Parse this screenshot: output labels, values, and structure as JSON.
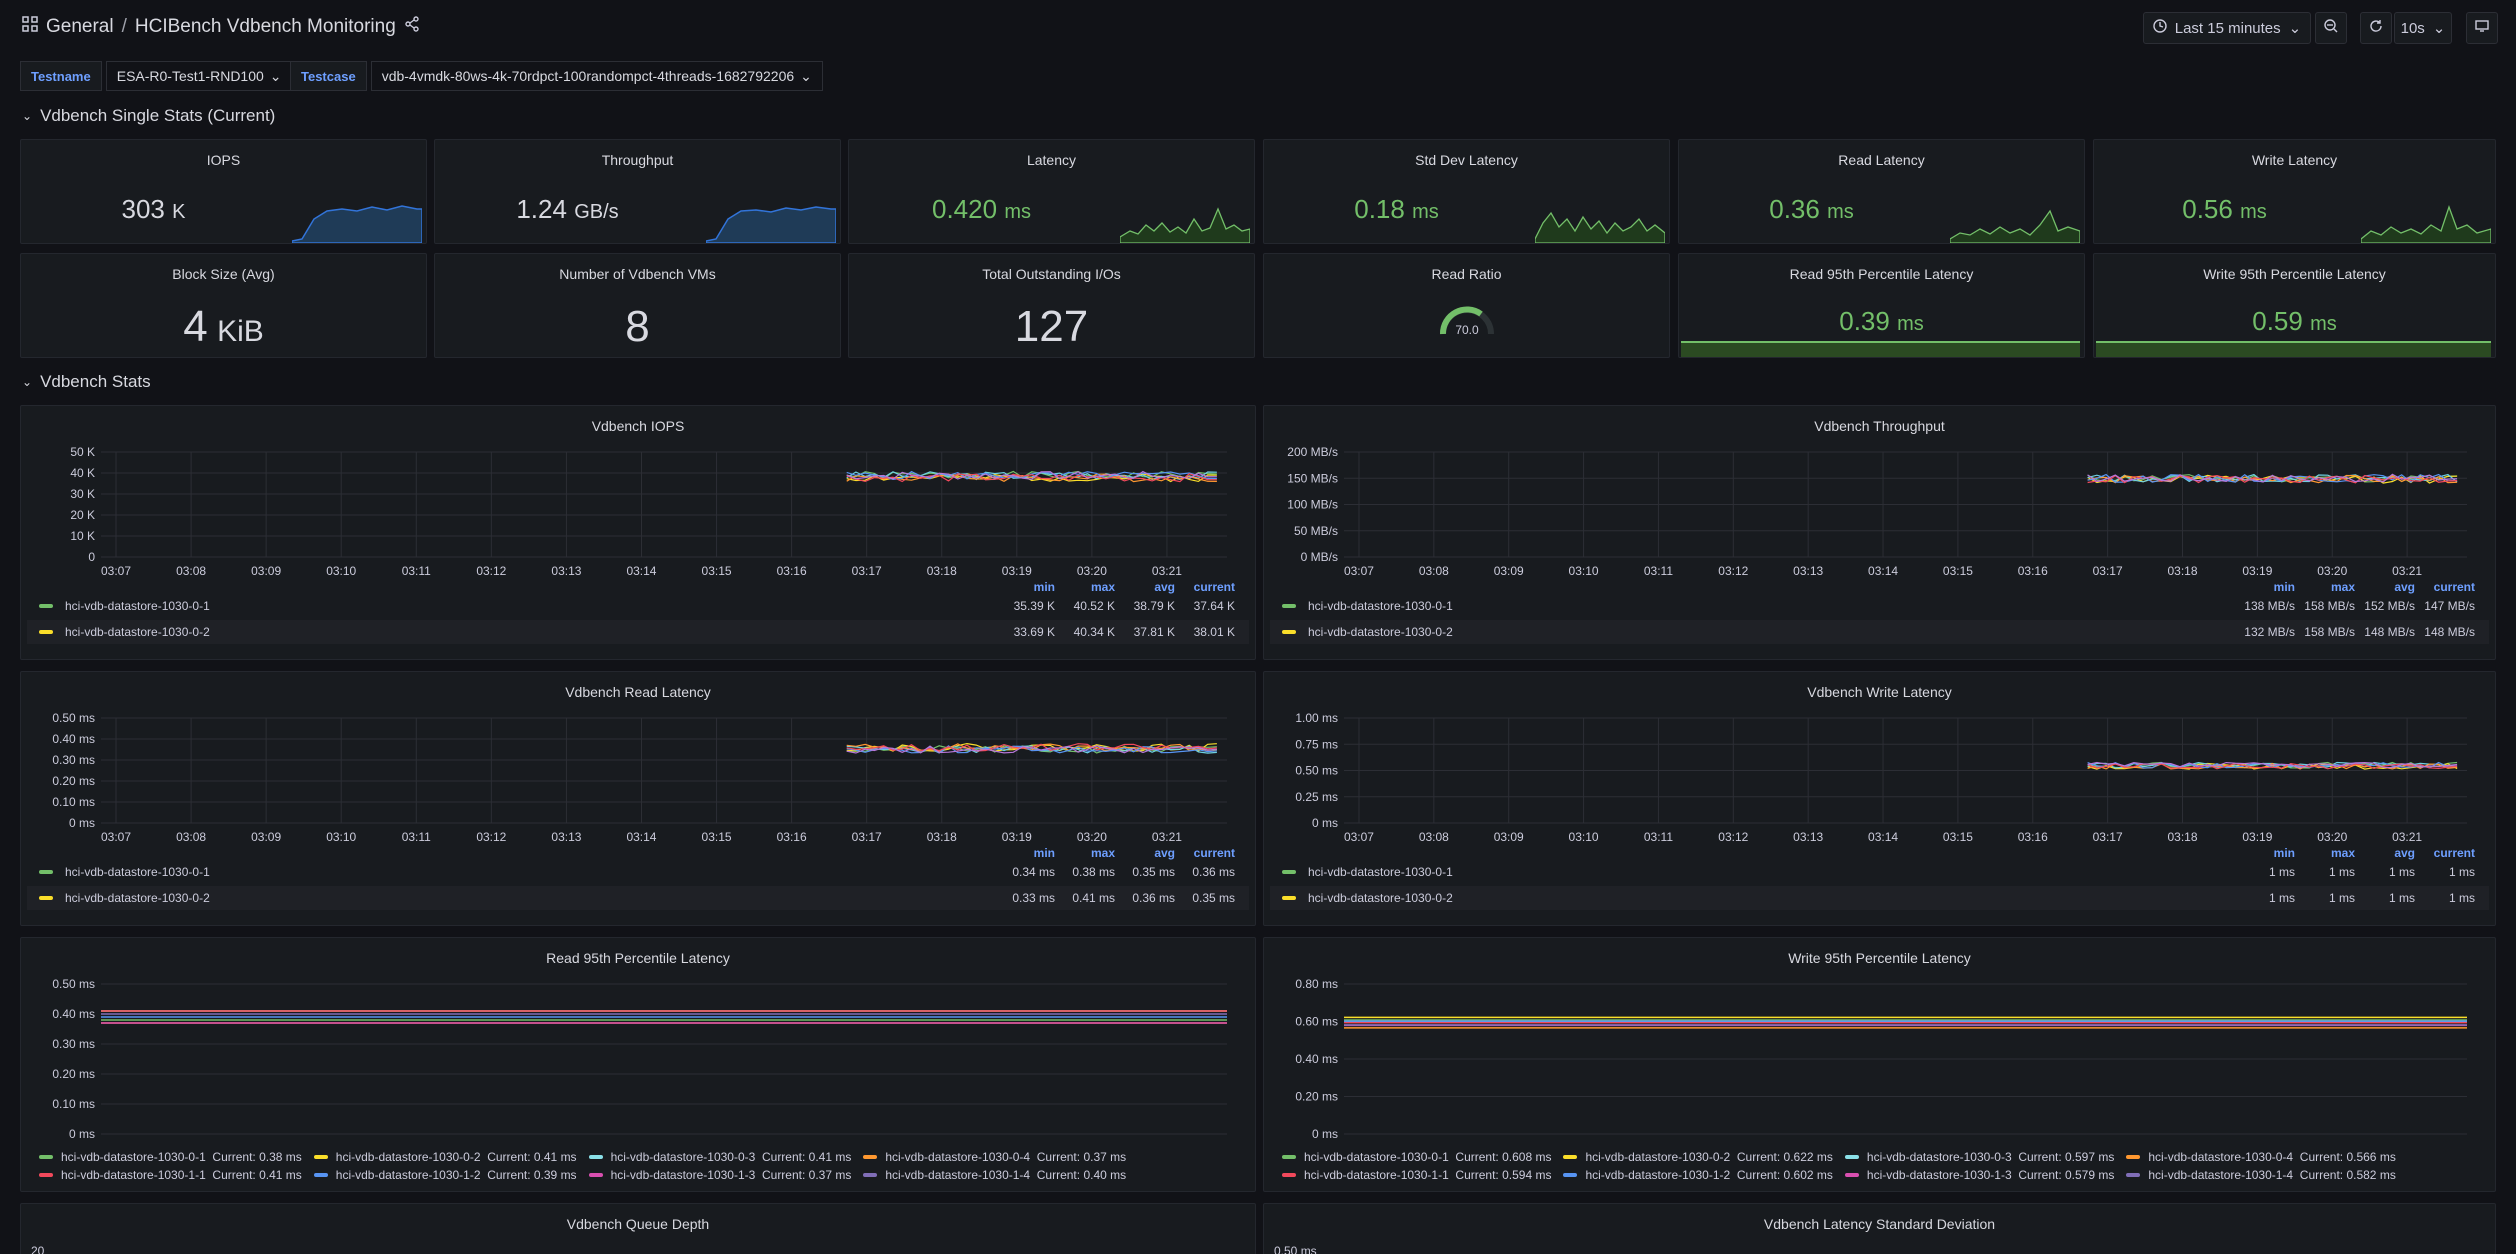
{
  "topbar": {
    "breadcrumb_root": "General",
    "breadcrumb_sep": "/",
    "dashboard_title": "HCIBench Vdbench Monitoring",
    "time_range": "Last 15 minutes",
    "refresh_interval": "10s"
  },
  "variables": [
    {
      "label": "Testname",
      "value": "ESA-R0-Test1-RND100"
    },
    {
      "label": "Testcase",
      "value": "vdb-4vmdk-80ws-4k-70rdpct-100randompct-4threads-1682792206"
    }
  ],
  "rows": {
    "single_stats": "Vdbench Single Stats (Current)",
    "stats": "Vdbench Stats"
  },
  "stat_panels": [
    {
      "title": "IOPS",
      "value": "303",
      "unit": "K"
    },
    {
      "title": "Throughput",
      "value": "1.24",
      "unit": "GB/s"
    },
    {
      "title": "Latency",
      "value": "0.420",
      "unit": "ms"
    },
    {
      "title": "Std Dev Latency",
      "value": "0.18",
      "unit": "ms"
    },
    {
      "title": "Read Latency",
      "value": "0.36",
      "unit": "ms"
    },
    {
      "title": "Write Latency",
      "value": "0.56",
      "unit": "ms"
    },
    {
      "title": "Block Size (Avg)",
      "value": "4",
      "unit": "KiB"
    },
    {
      "title": "Number of Vdbench VMs",
      "value": "8",
      "unit": ""
    },
    {
      "title": "Total Outstanding I/Os",
      "value": "127",
      "unit": ""
    },
    {
      "title": "Read Ratio",
      "value": "70.0",
      "unit": ""
    },
    {
      "title": "Read 95th Percentile Latency",
      "value": "0.39",
      "unit": "ms"
    },
    {
      "title": "Write 95th Percentile Latency",
      "value": "0.59",
      "unit": "ms"
    }
  ],
  "colors": {
    "green": "#73bf69",
    "yellow": "#fade2a",
    "cyan": "#8ab8ff",
    "orange": "#ff9830",
    "red": "#f2495c",
    "blue": "#5794f2",
    "pink": "#b877d9",
    "purple": "#806eb7",
    "teal": "#6ed0e0",
    "legend_header": "#6e9fff"
  },
  "x_ticks": [
    "03:07",
    "03:08",
    "03:09",
    "03:10",
    "03:11",
    "03:12",
    "03:13",
    "03:14",
    "03:15",
    "03:16",
    "03:17",
    "03:18",
    "03:19",
    "03:20",
    "03:21"
  ],
  "legend_headers": [
    "min",
    "max",
    "avg",
    "current"
  ],
  "chart_data": [
    {
      "type": "line",
      "title": "Vdbench IOPS",
      "y_ticks": [
        "50 K",
        "40 K",
        "30 K",
        "20 K",
        "10 K",
        "0"
      ],
      "ylim": [
        0,
        50000
      ],
      "xlim": [
        "03:07",
        "03:22"
      ],
      "series": [
        {
          "name": "hci-vdb-datastore-1030-0-1",
          "color": "#73bf69",
          "min": "35.39 K",
          "max": "40.52 K",
          "avg": "38.79 K",
          "current": "37.64 K"
        },
        {
          "name": "hci-vdb-datastore-1030-0-2",
          "color": "#fade2a",
          "min": "33.69 K",
          "max": "40.34 K",
          "avg": "37.81 K",
          "current": "38.01 K"
        }
      ]
    },
    {
      "type": "line",
      "title": "Vdbench Throughput",
      "y_ticks": [
        "200 MB/s",
        "150 MB/s",
        "100 MB/s",
        "50 MB/s",
        "0 MB/s"
      ],
      "ylim": [
        0,
        200
      ],
      "xlim": [
        "03:07",
        "03:22"
      ],
      "series": [
        {
          "name": "hci-vdb-datastore-1030-0-1",
          "color": "#73bf69",
          "min": "138 MB/s",
          "max": "158 MB/s",
          "avg": "152 MB/s",
          "current": "147 MB/s"
        },
        {
          "name": "hci-vdb-datastore-1030-0-2",
          "color": "#fade2a",
          "min": "132 MB/s",
          "max": "158 MB/s",
          "avg": "148 MB/s",
          "current": "148 MB/s"
        }
      ]
    },
    {
      "type": "line",
      "title": "Vdbench Read Latency",
      "y_ticks": [
        "0.50 ms",
        "0.40 ms",
        "0.30 ms",
        "0.20 ms",
        "0.10 ms",
        "0 ms"
      ],
      "ylim": [
        0,
        0.5
      ],
      "xlim": [
        "03:07",
        "03:22"
      ],
      "series": [
        {
          "name": "hci-vdb-datastore-1030-0-1",
          "color": "#73bf69",
          "min": "0.34 ms",
          "max": "0.38 ms",
          "avg": "0.35 ms",
          "current": "0.36 ms"
        },
        {
          "name": "hci-vdb-datastore-1030-0-2",
          "color": "#fade2a",
          "min": "0.33 ms",
          "max": "0.41 ms",
          "avg": "0.36 ms",
          "current": "0.35 ms"
        }
      ]
    },
    {
      "type": "line",
      "title": "Vdbench Write Latency",
      "y_ticks": [
        "1.00 ms",
        "0.75 ms",
        "0.50 ms",
        "0.25 ms",
        "0 ms"
      ],
      "ylim": [
        0,
        1
      ],
      "xlim": [
        "03:07",
        "03:22"
      ],
      "series": [
        {
          "name": "hci-vdb-datastore-1030-0-1",
          "color": "#73bf69",
          "min": "1 ms",
          "max": "1 ms",
          "avg": "1 ms",
          "current": "1 ms"
        },
        {
          "name": "hci-vdb-datastore-1030-0-2",
          "color": "#fade2a",
          "min": "1 ms",
          "max": "1 ms",
          "avg": "1 ms",
          "current": "1 ms"
        }
      ]
    },
    {
      "type": "line",
      "title": "Read 95th Percentile Latency",
      "y_ticks": [
        "0.50 ms",
        "0.40 ms",
        "0.30 ms",
        "0.20 ms",
        "0.10 ms",
        "0 ms"
      ],
      "ylim": [
        0,
        0.5
      ],
      "series": [
        {
          "name": "hci-vdb-datastore-1030-0-1",
          "color": "#73bf69",
          "current": "Current: 0.38 ms",
          "value": 0.38
        },
        {
          "name": "hci-vdb-datastore-1030-0-2",
          "color": "#fade2a",
          "current": "Current: 0.41 ms",
          "value": 0.41
        },
        {
          "name": "hci-vdb-datastore-1030-0-3",
          "color": "#8ae0e8",
          "current": "Current: 0.41 ms",
          "value": 0.41
        },
        {
          "name": "hci-vdb-datastore-1030-0-4",
          "color": "#ff9830",
          "current": "Current: 0.37 ms",
          "value": 0.37
        },
        {
          "name": "hci-vdb-datastore-1030-1-1",
          "color": "#f2495c",
          "current": "Current: 0.41 ms",
          "value": 0.41
        },
        {
          "name": "hci-vdb-datastore-1030-1-2",
          "color": "#5794f2",
          "current": "Current: 0.39 ms",
          "value": 0.39
        },
        {
          "name": "hci-vdb-datastore-1030-1-3",
          "color": "#d94fb0",
          "current": "Current: 0.37 ms",
          "value": 0.37
        },
        {
          "name": "hci-vdb-datastore-1030-1-4",
          "color": "#806eb7",
          "current": "Current: 0.40 ms",
          "value": 0.4
        }
      ]
    },
    {
      "type": "line",
      "title": "Write 95th Percentile Latency",
      "y_ticks": [
        "0.80 ms",
        "0.60 ms",
        "0.40 ms",
        "0.20 ms",
        "0 ms"
      ],
      "ylim": [
        0,
        0.8
      ],
      "series": [
        {
          "name": "hci-vdb-datastore-1030-0-1",
          "color": "#73bf69",
          "current": "Current: 0.608 ms",
          "value": 0.608
        },
        {
          "name": "hci-vdb-datastore-1030-0-2",
          "color": "#fade2a",
          "current": "Current: 0.622 ms",
          "value": 0.622
        },
        {
          "name": "hci-vdb-datastore-1030-0-3",
          "color": "#8ae0e8",
          "current": "Current: 0.597 ms",
          "value": 0.597
        },
        {
          "name": "hci-vdb-datastore-1030-0-4",
          "color": "#ff9830",
          "current": "Current: 0.566 ms",
          "value": 0.566
        },
        {
          "name": "hci-vdb-datastore-1030-1-1",
          "color": "#f2495c",
          "current": "Current: 0.594 ms",
          "value": 0.594
        },
        {
          "name": "hci-vdb-datastore-1030-1-2",
          "color": "#5794f2",
          "current": "Current: 0.602 ms",
          "value": 0.602
        },
        {
          "name": "hci-vdb-datastore-1030-1-3",
          "color": "#d94fb0",
          "current": "Current: 0.579 ms",
          "value": 0.579
        },
        {
          "name": "hci-vdb-datastore-1030-1-4",
          "color": "#806eb7",
          "current": "Current: 0.582 ms",
          "value": 0.582
        }
      ]
    },
    {
      "type": "line",
      "title": "Vdbench Queue Depth",
      "y_ticks": [
        "20"
      ]
    },
    {
      "type": "line",
      "title": "Vdbench Latency Standard Deviation",
      "y_ticks": [
        "0.50 ms"
      ]
    }
  ]
}
